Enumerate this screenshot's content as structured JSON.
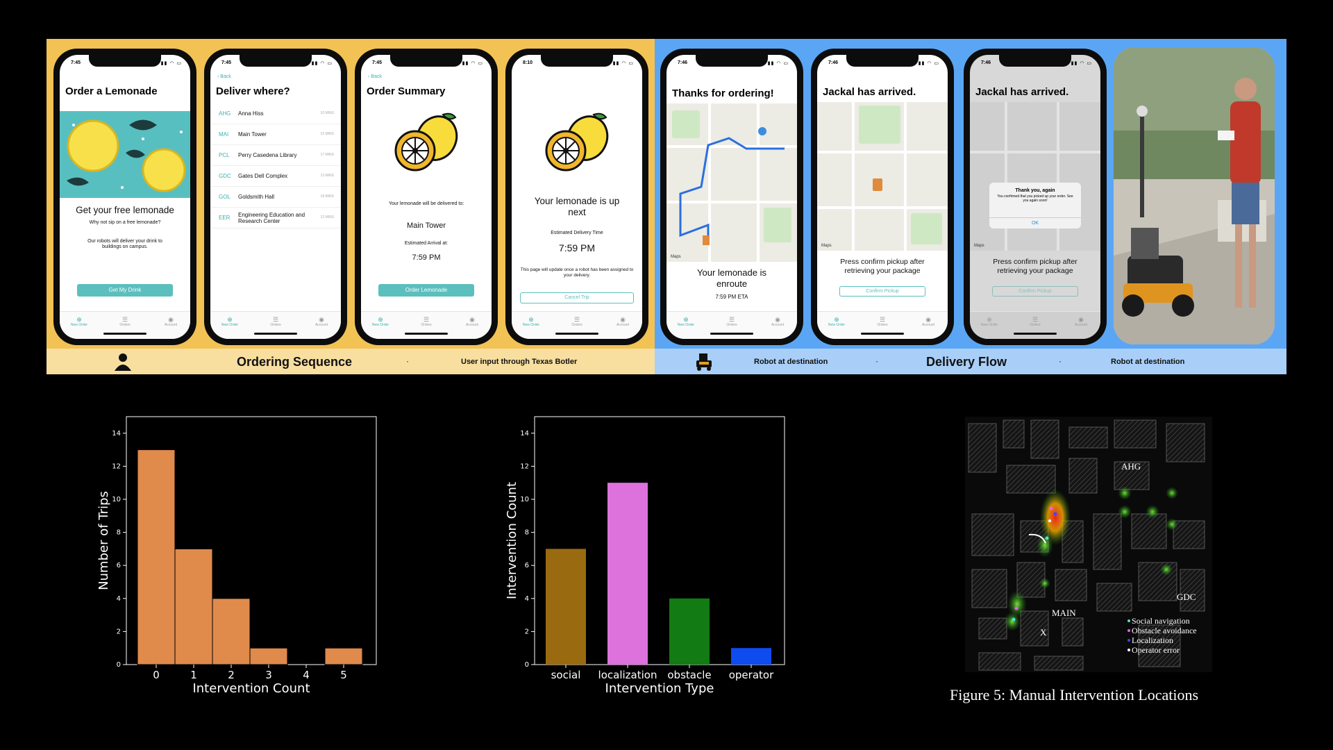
{
  "ordering": {
    "title": "Ordering Sequence",
    "note": "User input through Texas Botler",
    "phone1": {
      "time": "7:45",
      "title": "Order a Lemonade",
      "headline": "Get your free lemonade",
      "sub": "Why not sip on a free lemonade?",
      "body": "Our robots will deliver your drink to buildings on campus.",
      "button": "Get My Drink"
    },
    "phone2": {
      "time": "7:45",
      "back": "Back",
      "title": "Deliver where?",
      "destinations": [
        {
          "code": "AHG",
          "name": "Anna Hiss",
          "eta": "10 MINS"
        },
        {
          "code": "MAI",
          "name": "Main Tower",
          "eta": "15 MINS"
        },
        {
          "code": "PCL",
          "name": "Perry Casedena Library",
          "eta": "17 MINS"
        },
        {
          "code": "GDC",
          "name": "Gates Dell Complex",
          "eta": "13 MINS"
        },
        {
          "code": "GOL",
          "name": "Goldsmith Hall",
          "eta": "18 MINS"
        },
        {
          "code": "EER",
          "name": "Engineering Education and Research Center",
          "eta": "12 MINS"
        }
      ]
    },
    "phone3": {
      "time": "7:45",
      "back": "Back",
      "title": "Order Summary",
      "deliver_to_label": "Your lemonade will be delivered to:",
      "destination": "Main Tower",
      "eta_label": "Estimated Arrival at:",
      "eta": "7:59 PM",
      "button": "Order Lemonade"
    },
    "phone4": {
      "time": "8:10",
      "headline": "Your lemonade is up next",
      "eta_label": "Estimated Delivery Time",
      "eta": "7:59 PM",
      "note": "This page will update once a robot has been assigned to your delivery.",
      "button": "Cancel Trip"
    }
  },
  "delivery": {
    "title": "Delivery Flow",
    "left_note": "Robot at destination",
    "right_note": "Robot at destination",
    "phone5": {
      "time": "7:46",
      "title": "Thanks for ordering!",
      "status": "Your lemonade is enroute",
      "eta": "7:59 PM ETA",
      "map_attr": "Maps"
    },
    "phone6": {
      "time": "7:46",
      "title": "Jackal has arrived.",
      "body": "Press confirm pickup after retrieving your package",
      "button": "Confirm Pickup",
      "map_attr": "Maps"
    },
    "phone7": {
      "time": "7:46",
      "title": "Jackal has arrived.",
      "dialog_title": "Thank you, again",
      "dialog_body": "You confirmed that you picked up your order. See you again soon!",
      "dialog_ok": "OK",
      "body": "Press confirm pickup after retrieving your package",
      "button": "Confirm Pickup",
      "map_attr": "Maps"
    }
  },
  "tabs": [
    "New Order",
    "Orders",
    "Account"
  ],
  "icons": {
    "person": "person-icon",
    "robot": "robot-icon",
    "tab_new": "plus-circle-icon",
    "tab_orders": "list-icon",
    "tab_account": "user-circle-icon"
  },
  "colors": {
    "ordering_bg": "#f2c255",
    "delivery_bg": "#5aa6f5",
    "teal": "#5bbfbd",
    "hist": "#e08a4c"
  },
  "chart_data": [
    {
      "type": "bar",
      "categories": [
        "0",
        "1",
        "2",
        "3",
        "4",
        "5"
      ],
      "values": [
        13,
        7,
        4,
        1,
        0,
        1
      ],
      "xlabel": "Intervention Count",
      "ylabel": "Number of Trips",
      "ylim": [
        0,
        15
      ],
      "yticks": [
        "0",
        "2",
        "4",
        "6",
        "8",
        "10",
        "12",
        "14"
      ],
      "grid": false
    },
    {
      "type": "bar",
      "categories": [
        "social",
        "localization",
        "obstacle",
        "operator"
      ],
      "values": [
        7,
        11,
        4,
        1
      ],
      "colors": [
        "#9a6a10",
        "#dd72dd",
        "#137b13",
        "#0e4cf0"
      ],
      "xlabel": "Intervention Type",
      "ylabel": "Intervention Count",
      "ylim": [
        0,
        15
      ],
      "yticks": [
        "0",
        "2",
        "4",
        "6",
        "8",
        "10",
        "12",
        "14"
      ],
      "grid": false
    }
  ],
  "figure": {
    "caption": "Figure 5: Manual Intervention Locations",
    "labels": {
      "ahg": "AHG",
      "main": "MAIN",
      "gdc": "GDC",
      "x": "X"
    },
    "legend": [
      {
        "label": "Social navigation",
        "color": "#4fe0d0"
      },
      {
        "label": "Obstacle avoidance",
        "color": "#ff55ff"
      },
      {
        "label": "Localization",
        "color": "#4444ff"
      },
      {
        "label": "Operator error",
        "color": "#ffffff"
      }
    ]
  }
}
